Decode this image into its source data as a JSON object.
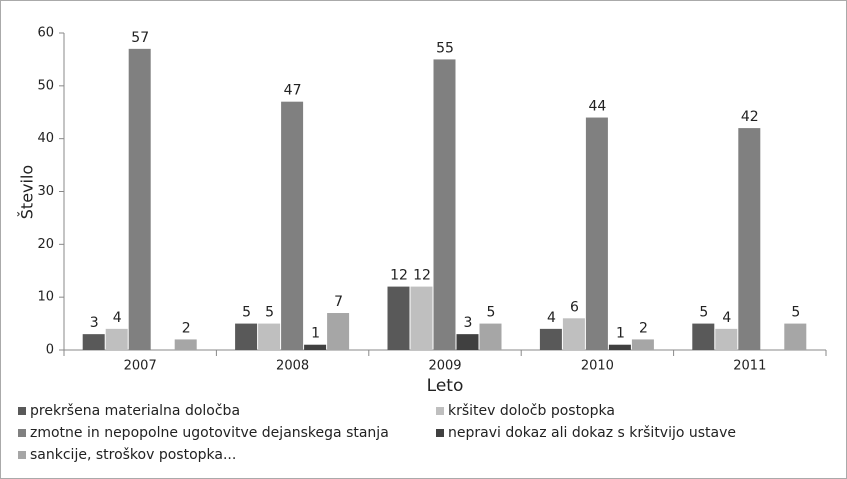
{
  "chart_data": {
    "type": "bar",
    "categories": [
      "2007",
      "2008",
      "2009",
      "2010",
      "2011"
    ],
    "series": [
      {
        "name": "prekršena materialna določba",
        "color": "#595959",
        "values": [
          3,
          5,
          12,
          4,
          5
        ]
      },
      {
        "name": "kršitev določb postopka",
        "color": "#bfbfbf",
        "values": [
          4,
          5,
          12,
          6,
          4
        ]
      },
      {
        "name": "zmotne in nepopolne ugotovitve dejanskega stanja",
        "color": "#808080",
        "values": [
          57,
          47,
          55,
          44,
          42
        ]
      },
      {
        "name": "nepravi dokaz ali dokaz s kršitvijo ustave",
        "color": "#404040",
        "values": [
          null,
          1,
          3,
          1,
          null
        ]
      },
      {
        "name": "sankcije, stroškov postopka...",
        "color": "#a6a6a6",
        "values": [
          2,
          7,
          5,
          2,
          5
        ]
      }
    ],
    "xlabel": "Leto",
    "ylabel": "Število",
    "ylim": [
      0,
      60
    ],
    "yticks": [
      0,
      10,
      20,
      30,
      40,
      50,
      60
    ],
    "grid": false,
    "legend": "bottom"
  }
}
